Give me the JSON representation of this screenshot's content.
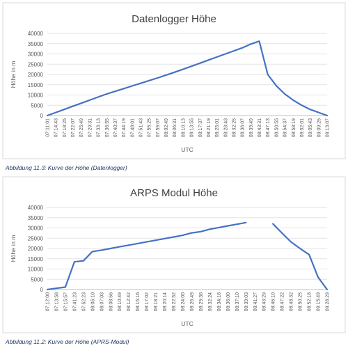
{
  "chart_data": [
    {
      "type": "line",
      "title": "Datenlogger Höhe",
      "xlabel": "UTC",
      "ylabel": "Höhe in m",
      "ylim": [
        0,
        40000
      ],
      "yticks": [
        0,
        5000,
        10000,
        15000,
        20000,
        25000,
        30000,
        35000,
        40000
      ],
      "grid": true,
      "legend": "none",
      "line_color": "#4472c4",
      "categories": [
        "07:11:01",
        "07:14:43",
        "07:18:25",
        "07:22:07",
        "07:25:49",
        "07:29:31",
        "07:33:13",
        "07:36:55",
        "07:40:37",
        "07:44:19",
        "07:48:01",
        "07:51:43",
        "07:55:25",
        "07:59:07",
        "08:02:49",
        "08:06:31",
        "08:10:13",
        "08:13:55",
        "08:17:37",
        "08:21:19",
        "08:25:01",
        "08:28:43",
        "08:32:25",
        "08:36:07",
        "08:39:49",
        "08:43:31",
        "08:47:13",
        "08:50:55",
        "08:54:37",
        "08:58:19",
        "09:02:01",
        "09:05:43",
        "09:09:25",
        "09:13:07"
      ],
      "values": [
        0,
        1500,
        3000,
        4500,
        6000,
        7500,
        9000,
        10500,
        11800,
        13100,
        14400,
        15700,
        17000,
        18300,
        19700,
        21100,
        22500,
        24000,
        25500,
        27000,
        28500,
        30000,
        31500,
        33000,
        34800,
        36200,
        20000,
        14500,
        10500,
        7500,
        5000,
        3000,
        1500,
        0
      ]
    },
    {
      "type": "line",
      "title": "ARPS Modul Höhe",
      "xlabel": "UTC",
      "ylabel": "Höhe in m",
      "ylim": [
        0,
        40000
      ],
      "yticks": [
        0,
        5000,
        10000,
        15000,
        20000,
        25000,
        30000,
        35000,
        40000
      ],
      "grid": true,
      "legend": "none",
      "line_color": "#4472c4",
      "categories": [
        "07:12:00",
        "07:13:58",
        "07:15:57",
        "07:41:23",
        "07:52:23",
        "08:05:10",
        "08:07:03",
        "08:08:56",
        "08:10:49",
        "08:12:42",
        "08:15:16",
        "08:17:02",
        "08:18:21",
        "08:20:14",
        "08:22:52",
        "08:24:00",
        "08:26:49",
        "08:29:36",
        "08:32:24",
        "08:34:16",
        "08:36:00",
        "08:37:10",
        "08:39:03",
        "08:41:27",
        "08:43:29",
        "08:46:10",
        "08:47:22",
        "08:48:32",
        "08:50:25",
        "08:52:18",
        "09:15:49",
        "09:28:29"
      ],
      "values": [
        0,
        600,
        1200,
        13500,
        14000,
        18500,
        19200,
        20000,
        20800,
        21600,
        22400,
        23200,
        24000,
        24800,
        25600,
        26400,
        27600,
        28200,
        29400,
        30200,
        31000,
        31800,
        32600,
        null,
        null,
        32000,
        27500,
        23200,
        20000,
        17000,
        6000,
        0
      ]
    }
  ],
  "captions": [
    "Abbildung 11.3: Kurve der Höhe (Datenlogger)",
    "Abbildung 11.2: Kurve der Höhe (APRS-Modul)"
  ]
}
